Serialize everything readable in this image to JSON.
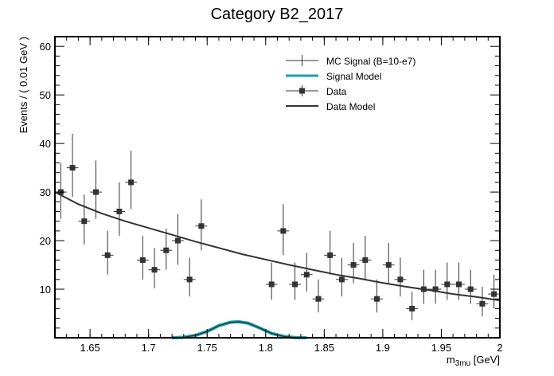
{
  "chart_data": {
    "type": "scatter",
    "title": "Category B2_2017",
    "ylabel": "Events / ( 0.01 GeV )",
    "xlabel_main": "m",
    "xlabel_sub": "3mu",
    "xlabel_unit": " [GeV]",
    "xlim": [
      1.62,
      2.0
    ],
    "ylim": [
      0,
      62
    ],
    "x_ticks": [
      1.65,
      1.7,
      1.75,
      1.8,
      1.85,
      1.9,
      1.95,
      2.0
    ],
    "x_tick_labels": [
      "1.65",
      "1.7",
      "1.75",
      "1.8",
      "1.85",
      "1.9",
      "1.95",
      "2"
    ],
    "y_ticks": [
      10,
      20,
      30,
      40,
      50,
      60
    ],
    "y_tick_labels": [
      "10",
      "20",
      "30",
      "40",
      "50",
      "60"
    ],
    "legend": [
      {
        "key": "mc",
        "label": "MC Signal (B=10-e7)"
      },
      {
        "key": "signal_model",
        "label": "Signal Model"
      },
      {
        "key": "data",
        "label": "Data"
      },
      {
        "key": "data_model",
        "label": "Data Model"
      }
    ],
    "legend_position": "top-right",
    "colors": {
      "data": "#333333",
      "data_model": "#333333",
      "signal_model": "#1aa0a8",
      "mc": "#333333"
    },
    "bin_half_width": 0.005,
    "data_points": [
      {
        "x": 1.625,
        "y": 30,
        "lo": 24.5,
        "hi": 36.0
      },
      {
        "x": 1.635,
        "y": 35,
        "lo": 29.0,
        "hi": 42.0
      },
      {
        "x": 1.645,
        "y": 24,
        "lo": 19.2,
        "hi": 29.5
      },
      {
        "x": 1.655,
        "y": 30,
        "lo": 24.5,
        "hi": 36.5
      },
      {
        "x": 1.665,
        "y": 17,
        "lo": 13.0,
        "hi": 22.0
      },
      {
        "x": 1.675,
        "y": 26,
        "lo": 21.0,
        "hi": 32.0
      },
      {
        "x": 1.685,
        "y": 32,
        "lo": 26.5,
        "hi": 38.5
      },
      {
        "x": 1.695,
        "y": 16,
        "lo": 12.0,
        "hi": 21.0
      },
      {
        "x": 1.705,
        "y": 14,
        "lo": 10.2,
        "hi": 18.5
      },
      {
        "x": 1.715,
        "y": 18,
        "lo": 14.0,
        "hi": 22.5
      },
      {
        "x": 1.725,
        "y": 20,
        "lo": 15.0,
        "hi": 25.5
      },
      {
        "x": 1.735,
        "y": 12,
        "lo": 8.5,
        "hi": 16.5
      },
      {
        "x": 1.745,
        "y": 23,
        "lo": 18.0,
        "hi": 28.5
      },
      {
        "x": 1.805,
        "y": 11,
        "lo": 7.8,
        "hi": 15.5
      },
      {
        "x": 1.815,
        "y": 22,
        "lo": 17.0,
        "hi": 27.5
      },
      {
        "x": 1.825,
        "y": 11,
        "lo": 7.8,
        "hi": 15.5
      },
      {
        "x": 1.835,
        "y": 13,
        "lo": 9.5,
        "hi": 17.5
      },
      {
        "x": 1.845,
        "y": 8,
        "lo": 5.2,
        "hi": 12.0
      },
      {
        "x": 1.855,
        "y": 17,
        "lo": 13.0,
        "hi": 22.0
      },
      {
        "x": 1.865,
        "y": 12,
        "lo": 8.5,
        "hi": 16.5
      },
      {
        "x": 1.875,
        "y": 15,
        "lo": 11.2,
        "hi": 19.5
      },
      {
        "x": 1.885,
        "y": 16,
        "lo": 12.0,
        "hi": 21.0
      },
      {
        "x": 1.895,
        "y": 8,
        "lo": 5.2,
        "hi": 12.0
      },
      {
        "x": 1.905,
        "y": 15,
        "lo": 11.2,
        "hi": 19.5
      },
      {
        "x": 1.915,
        "y": 12,
        "lo": 8.5,
        "hi": 16.5
      },
      {
        "x": 1.925,
        "y": 6,
        "lo": 3.6,
        "hi": 9.5
      },
      {
        "x": 1.935,
        "y": 10,
        "lo": 7.0,
        "hi": 14.0
      },
      {
        "x": 1.945,
        "y": 10,
        "lo": 7.0,
        "hi": 14.0
      },
      {
        "x": 1.955,
        "y": 11,
        "lo": 7.8,
        "hi": 15.5
      },
      {
        "x": 1.965,
        "y": 11,
        "lo": 7.8,
        "hi": 15.5
      },
      {
        "x": 1.975,
        "y": 10,
        "lo": 7.0,
        "hi": 14.0
      },
      {
        "x": 1.985,
        "y": 7,
        "lo": 4.4,
        "hi": 10.5
      },
      {
        "x": 1.995,
        "y": 9,
        "lo": 6.0,
        "hi": 13.0
      }
    ],
    "data_model": {
      "x": [
        1.62,
        1.64,
        1.66,
        1.68,
        1.7,
        1.72,
        1.74,
        1.76,
        1.78,
        1.8,
        1.82,
        1.84,
        1.86,
        1.88,
        1.9,
        1.92,
        1.94,
        1.96,
        1.98,
        2.0
      ],
      "y": [
        30.0,
        27.5,
        25.6,
        24.0,
        22.6,
        21.2,
        19.8,
        18.5,
        17.2,
        16.1,
        15.0,
        14.0,
        13.0,
        12.2,
        11.3,
        10.5,
        9.8,
        9.0,
        8.4,
        7.7
      ]
    },
    "signal_model": {
      "x": [
        1.72,
        1.73,
        1.74,
        1.75,
        1.76,
        1.77,
        1.777,
        1.785,
        1.795,
        1.805,
        1.815,
        1.825,
        1.835
      ],
      "y": [
        0.0,
        0.1,
        0.5,
        1.3,
        2.5,
        3.2,
        3.3,
        3.0,
        2.0,
        0.9,
        0.3,
        0.05,
        0.0
      ]
    }
  }
}
